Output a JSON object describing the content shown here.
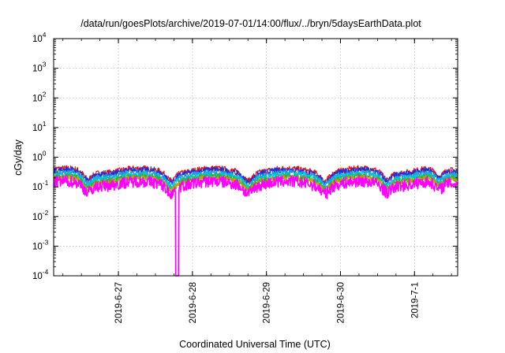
{
  "chart_data": {
    "type": "line",
    "title": "/data/run/goesPlots/archive/2019-07-01/14:00/flux/../bryn/5daysEarthData.plot",
    "xlabel": "Coordinated Universal Time (UTC)",
    "ylabel": "cGy/day",
    "yscale": "log",
    "ylim": [
      0.0001,
      10000
    ],
    "xlim": [
      "2019-06-26 03:00",
      "2019-07-01 14:00"
    ],
    "grid": true,
    "legend": "none",
    "x_ticks": [
      "2019-6-27",
      "2019-6-28",
      "2019-6-29",
      "2019-6-30",
      "2019-7-1"
    ],
    "y_ticks": [
      {
        "base": "10",
        "exp": "-4"
      },
      {
        "base": "10",
        "exp": "-3"
      },
      {
        "base": "10",
        "exp": "-2"
      },
      {
        "base": "10",
        "exp": "-1"
      },
      {
        "base": "10",
        "exp": "0"
      },
      {
        "base": "10",
        "exp": "1"
      },
      {
        "base": "10",
        "exp": "2"
      },
      {
        "base": "10",
        "exp": "3"
      },
      {
        "base": "10",
        "exp": "4"
      }
    ],
    "series": [
      {
        "color": "#e8101a",
        "level": 0.36,
        "profile": "daily-cycle"
      },
      {
        "color": "#1f2fd6",
        "level": 0.32,
        "profile": "daily-cycle"
      },
      {
        "color": "#1aa0e6",
        "level": 0.26,
        "profile": "daily-cycle"
      },
      {
        "color": "#00c8c8",
        "level": 0.22,
        "profile": "daily-cycle"
      },
      {
        "color": "#2fae3a",
        "level": 0.19,
        "profile": "daily-cycle"
      },
      {
        "color": "#c8a000",
        "level": 0.17,
        "profile": "daily-cycle"
      },
      {
        "color": "#ff00ff",
        "level": 0.13,
        "profile": "daily-cycle",
        "dropout": {
          "x": "2019-06-27 19:00",
          "y": 0.0001
        }
      }
    ]
  }
}
